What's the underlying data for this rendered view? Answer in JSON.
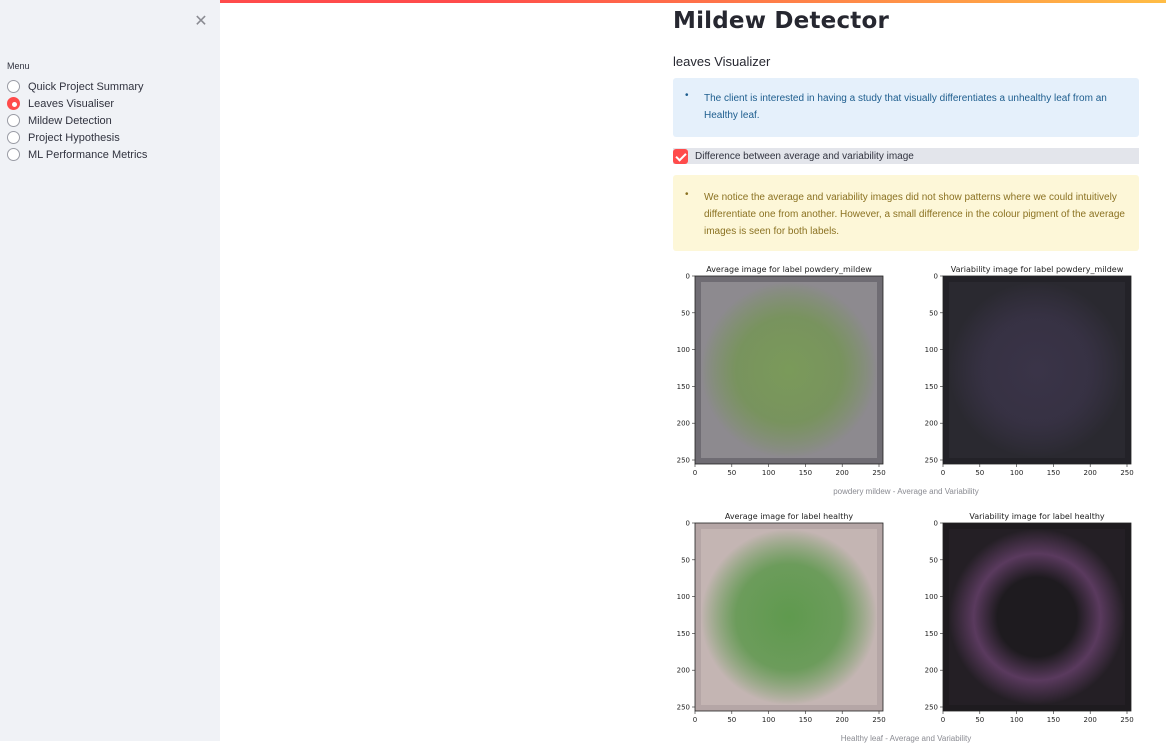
{
  "sidebar": {
    "close_label": "✕",
    "menu_label": "Menu",
    "items": [
      {
        "label": "Quick Project Summary",
        "selected": false
      },
      {
        "label": "Leaves Visualiser",
        "selected": true
      },
      {
        "label": "Mildew Detection",
        "selected": false
      },
      {
        "label": "Project Hypothesis",
        "selected": false
      },
      {
        "label": "ML Performance Metrics",
        "selected": false
      }
    ]
  },
  "main": {
    "title": "Mildew Detector",
    "subheader": "leaves Visualizer",
    "info_bullet": "•",
    "info_text": "The client is interested in having a study that visually differentiates a unhealthy leaf from an Healthy leaf.",
    "checkbox_label": "Difference between average and variability image",
    "checkbox_checked": true,
    "warning_text": "We notice the average and variability images did not show patterns where we could intuitively differentiate one from another. However, a small difference in the colour pigment of the average images is seen for both labels."
  },
  "figures": [
    {
      "caption": "powdery mildew - Average and Variability",
      "panels": [
        {
          "title": "Average image for label powdery_mildew",
          "bg": "#6f6c73",
          "blob": "#7a9a5a",
          "edge": "#8d8a8f",
          "ring": false
        },
        {
          "title": "Variability image for label powdery_mildew",
          "bg": "#232228",
          "blob": "#3a3448",
          "edge": "#2a2930",
          "ring": false
        }
      ],
      "yticks": [
        "0",
        "50",
        "100",
        "150",
        "200",
        "250"
      ],
      "xticks": [
        "0",
        "50",
        "100",
        "150",
        "200",
        "250"
      ]
    },
    {
      "caption": "Healthy leaf - Average and Variability",
      "panels": [
        {
          "title": "Average image for label healthy",
          "bg": "#b5a6a6",
          "blob": "#5f9a4e",
          "edge": "#c4b5b3",
          "ring": false
        },
        {
          "title": "Variability image for label healthy",
          "bg": "#1e1b1f",
          "blob": "#5a3a5e",
          "edge": "#241f25",
          "ring": true
        }
      ],
      "yticks": [
        "0",
        "50",
        "100",
        "150",
        "200",
        "250"
      ],
      "xticks": [
        "0",
        "50",
        "100",
        "150",
        "200",
        "250"
      ]
    }
  ],
  "colors": {
    "accent": "#ff4b4b",
    "sidebar_bg": "#f0f2f6",
    "info_bg": "#e5f0fb",
    "warning_bg": "#fdf7d8"
  }
}
